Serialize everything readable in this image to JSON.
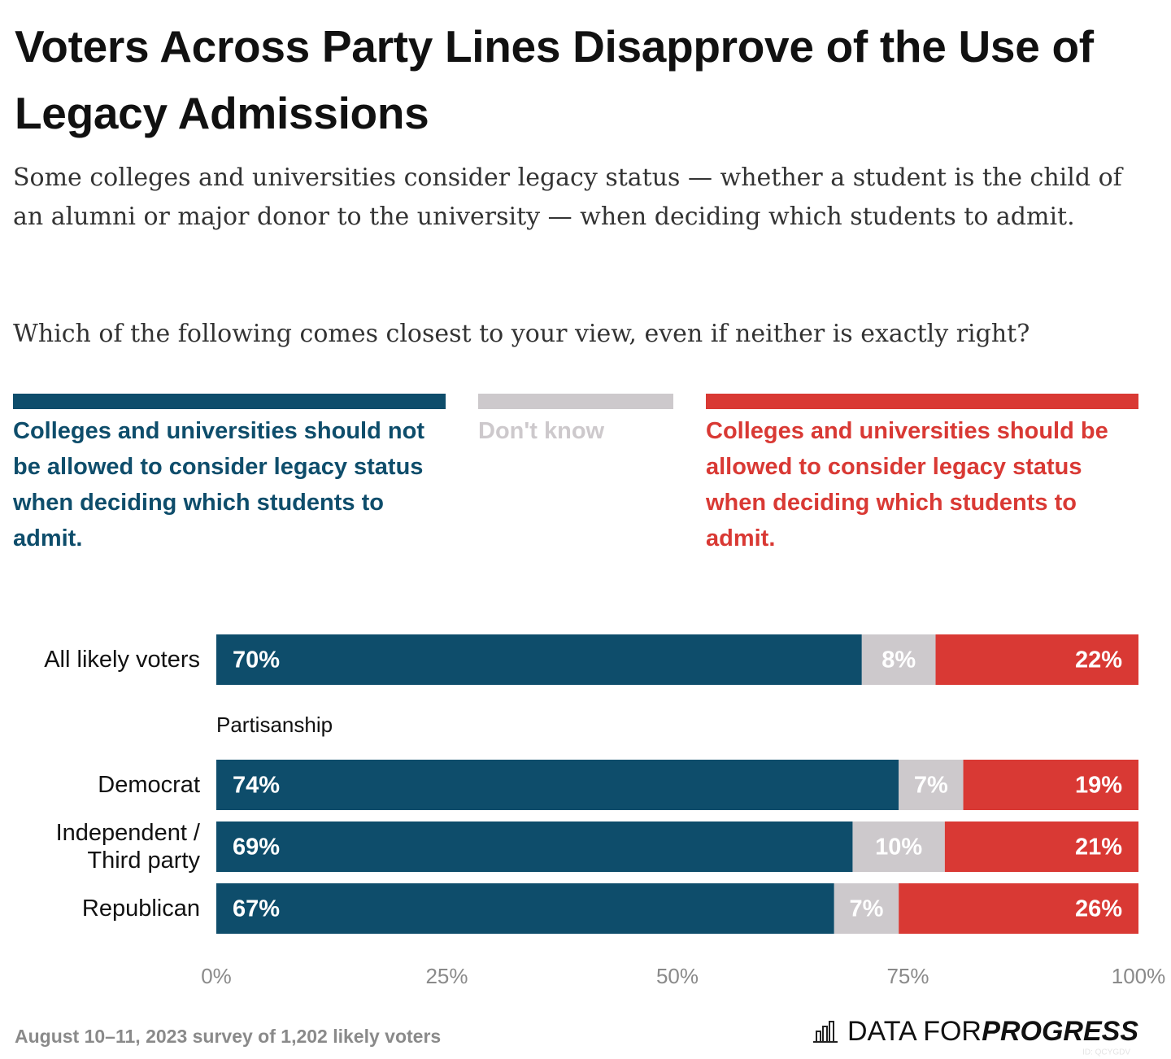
{
  "chart_data": {
    "type": "bar",
    "orientation": "horizontal",
    "stacked": true,
    "title": "Voters Across Party Lines Disapprove of the Use of Legacy Admissions",
    "description": "Some colleges and universities consider legacy status — whether a student is the child of an alumni or major donor to the university — when deciding which students to admit.",
    "question": "Which of the following comes closest to your view, even if neither is exactly right?",
    "group_label": "Partisanship",
    "categories": [
      "All likely voters",
      "Democrat",
      "Independent / Third party",
      "Republican"
    ],
    "series": [
      {
        "name": "Colleges and universities should not be allowed to consider legacy status when deciding which students to admit.",
        "color": "#0e4d6b",
        "values": [
          70,
          74,
          69,
          67
        ],
        "value_labels": [
          "70%",
          "74%",
          "69%",
          "67%"
        ]
      },
      {
        "name": "Don't know",
        "color": "#cdc9cc",
        "values": [
          8,
          7,
          10,
          7
        ],
        "value_labels": [
          "8%",
          "7%",
          "10%",
          "7%"
        ]
      },
      {
        "name": "Colleges and universities should be allowed to consider legacy status when deciding which students to admit.",
        "color": "#d93934",
        "values": [
          22,
          19,
          21,
          26
        ],
        "value_labels": [
          "22%",
          "19%",
          "21%",
          "26%"
        ]
      }
    ],
    "xlim": [
      0,
      100
    ],
    "xticks": [
      {
        "value": 0,
        "label": "0%"
      },
      {
        "value": 25,
        "label": "25%"
      },
      {
        "value": 50,
        "label": "50%"
      },
      {
        "value": 75,
        "label": "75%"
      },
      {
        "value": 100,
        "label": "100%"
      }
    ],
    "grid": false,
    "source": "August 10–11, 2023 survey of 1,202 likely voters",
    "brand": {
      "first": "DATA FOR",
      "second": "PROGRESS"
    },
    "chart_id": "ID: QCYGDV"
  }
}
